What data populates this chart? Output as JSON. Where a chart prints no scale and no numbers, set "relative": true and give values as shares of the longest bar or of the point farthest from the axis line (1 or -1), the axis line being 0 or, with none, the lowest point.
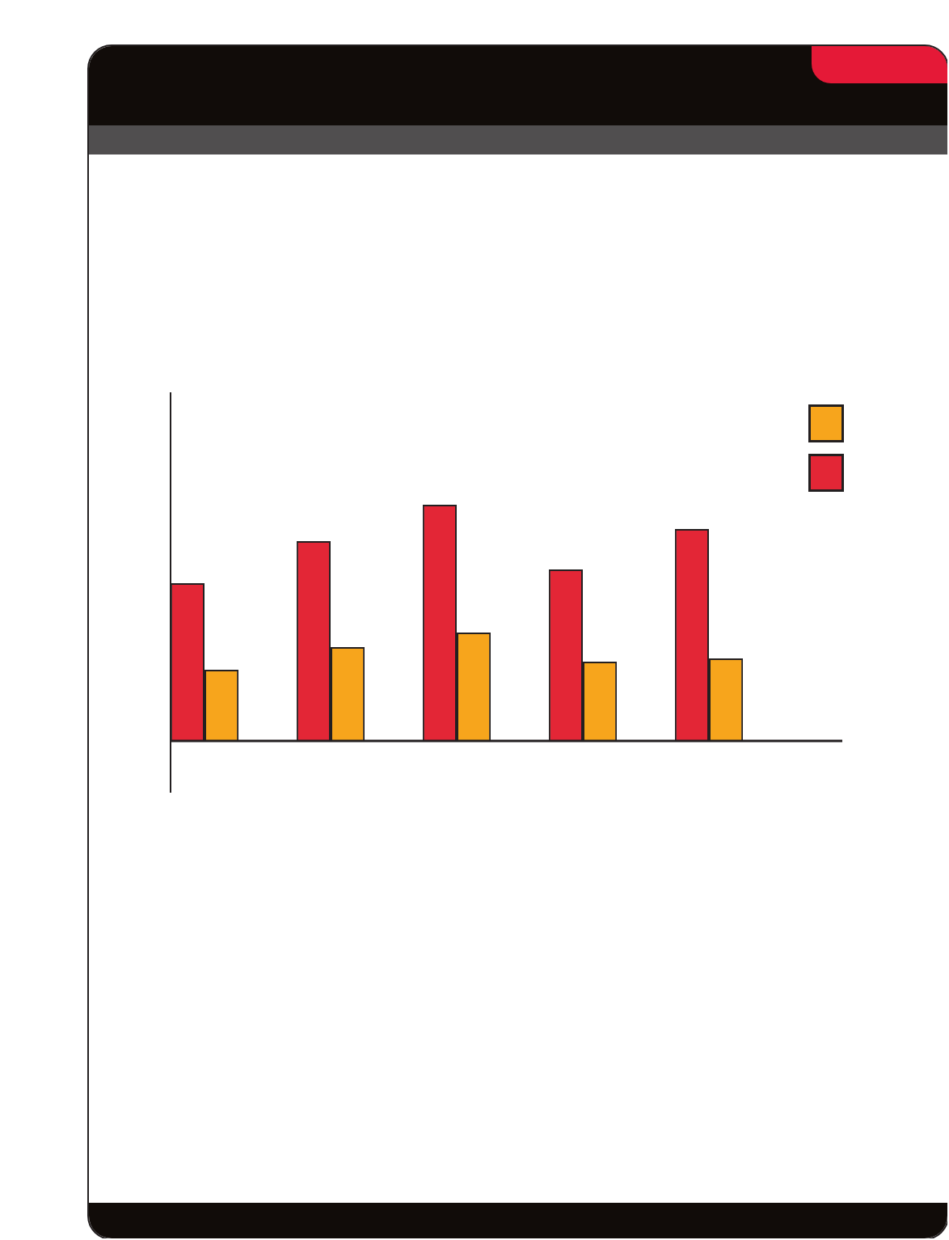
{
  "chart_data": {
    "type": "bar",
    "relative": true,
    "categories": [
      null,
      null,
      null,
      null,
      null
    ],
    "series": [
      {
        "color": "#e32636",
        "values": [
          0.668,
          0.846,
          1,
          0.726,
          0.897
        ]
      },
      {
        "color": "#f7a51c",
        "values": [
          0.301,
          0.397,
          0.459,
          0.336,
          0.349
        ]
      }
    ]
  }
}
